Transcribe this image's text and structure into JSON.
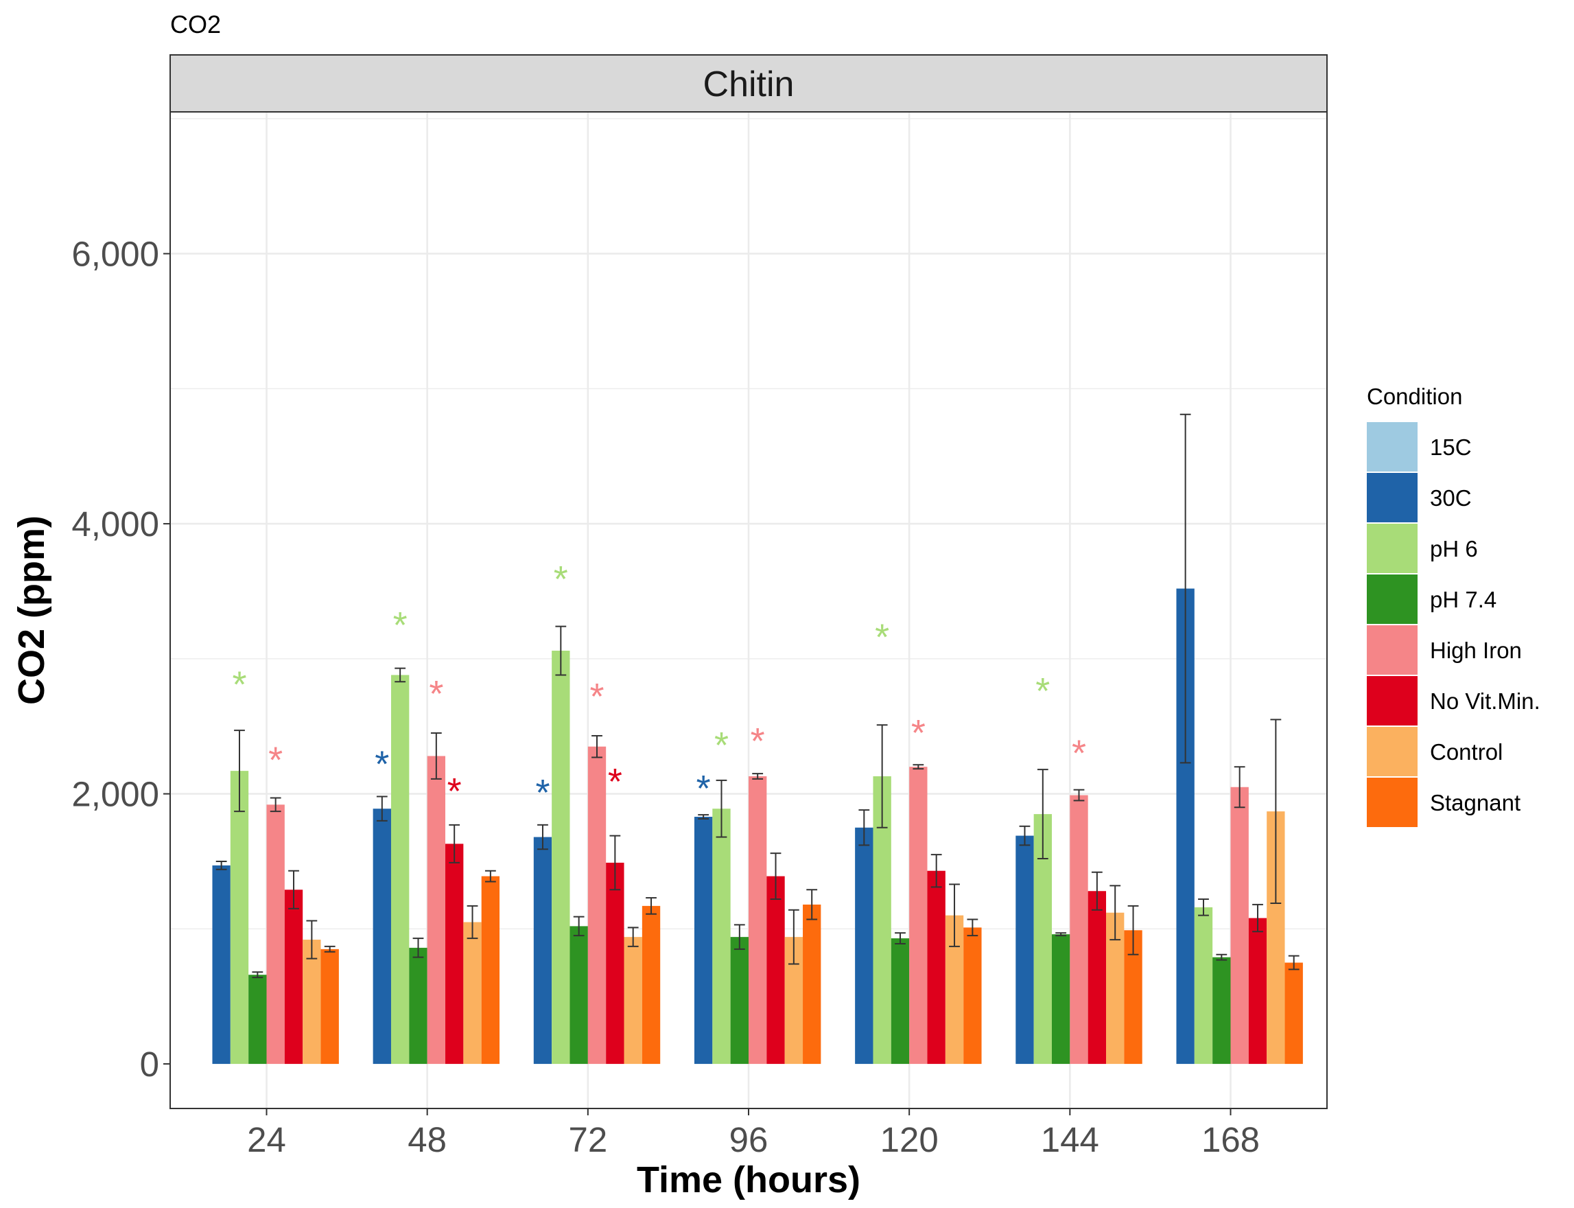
{
  "chart_data": {
    "type": "bar",
    "title": "CO2",
    "facet": "Chitin",
    "xlabel": "Time (hours)",
    "ylabel": "CO2 (ppm)",
    "ylim": [
      -330,
      7050
    ],
    "yticks": [
      0,
      2000,
      4000,
      6000
    ],
    "ytick_labels": [
      "0",
      "2,000",
      "4,000",
      "6,000"
    ],
    "categories": [
      "24",
      "48",
      "72",
      "96",
      "120",
      "144",
      "168"
    ],
    "grid": true,
    "legend_position": "right",
    "legend_title": "Condition",
    "series": [
      {
        "name": "15C",
        "color": "#9ecae1",
        "values": [
          null,
          null,
          null,
          null,
          null,
          null,
          null
        ],
        "err": [
          null,
          null,
          null,
          null,
          null,
          null,
          null
        ]
      },
      {
        "name": "30C",
        "color": "#1f63a8",
        "values": [
          1470,
          1890,
          1680,
          1830,
          1750,
          1690,
          3520
        ],
        "err": [
          30,
          90,
          90,
          15,
          130,
          70,
          1290
        ]
      },
      {
        "name": "pH 6",
        "color": "#a8dc78",
        "values": [
          2170,
          2880,
          3060,
          1890,
          2130,
          1850,
          1160
        ],
        "err": [
          300,
          50,
          180,
          210,
          380,
          330,
          60
        ]
      },
      {
        "name": "pH 7.4",
        "color": "#2e9322",
        "values": [
          660,
          860,
          1020,
          940,
          930,
          960,
          790
        ],
        "err": [
          20,
          70,
          70,
          90,
          40,
          10,
          20
        ]
      },
      {
        "name": "High Iron",
        "color": "#f58588",
        "values": [
          1920,
          2280,
          2350,
          2130,
          2200,
          1990,
          2050
        ],
        "err": [
          50,
          170,
          80,
          20,
          15,
          40,
          150
        ]
      },
      {
        "name": "No Vit.Min.",
        "color": "#de001c",
        "values": [
          1290,
          1630,
          1490,
          1390,
          1430,
          1280,
          1080
        ],
        "err": [
          140,
          140,
          200,
          170,
          120,
          140,
          100
        ]
      },
      {
        "name": "Control",
        "color": "#fbb15f",
        "values": [
          920,
          1050,
          940,
          940,
          1100,
          1120,
          1870
        ],
        "err": [
          140,
          120,
          70,
          200,
          230,
          200,
          680
        ]
      },
      {
        "name": "Stagnant",
        "color": "#fd6b0d",
        "values": [
          850,
          1390,
          1170,
          1180,
          1010,
          990,
          750
        ],
        "err": [
          20,
          40,
          60,
          110,
          60,
          180,
          50
        ]
      }
    ],
    "annotations": [
      {
        "category": "24",
        "series": "pH 6",
        "text": "*",
        "y": 2860
      },
      {
        "category": "24",
        "series": "High Iron",
        "text": "*",
        "y": 2300
      },
      {
        "category": "48",
        "series": "30C",
        "text": "*",
        "y": 2270
      },
      {
        "category": "48",
        "series": "pH 6",
        "text": "*",
        "y": 3300
      },
      {
        "category": "48",
        "series": "High Iron",
        "text": "*",
        "y": 2790
      },
      {
        "category": "48",
        "series": "No Vit.Min.",
        "text": "*",
        "y": 2070
      },
      {
        "category": "72",
        "series": "30C",
        "text": "*",
        "y": 2060
      },
      {
        "category": "72",
        "series": "pH 6",
        "text": "*",
        "y": 3640
      },
      {
        "category": "72",
        "series": "High Iron",
        "text": "*",
        "y": 2770
      },
      {
        "category": "72",
        "series": "No Vit.Min.",
        "text": "*",
        "y": 2140
      },
      {
        "category": "96",
        "series": "30C",
        "text": "*",
        "y": 2090
      },
      {
        "category": "96",
        "series": "pH 6",
        "text": "*",
        "y": 2410
      },
      {
        "category": "96",
        "series": "High Iron",
        "text": "*",
        "y": 2440
      },
      {
        "category": "120",
        "series": "pH 6",
        "text": "*",
        "y": 3210
      },
      {
        "category": "120",
        "series": "High Iron",
        "text": "*",
        "y": 2500
      },
      {
        "category": "144",
        "series": "pH 6",
        "text": "*",
        "y": 2810
      },
      {
        "category": "144",
        "series": "High Iron",
        "text": "*",
        "y": 2350
      }
    ]
  }
}
